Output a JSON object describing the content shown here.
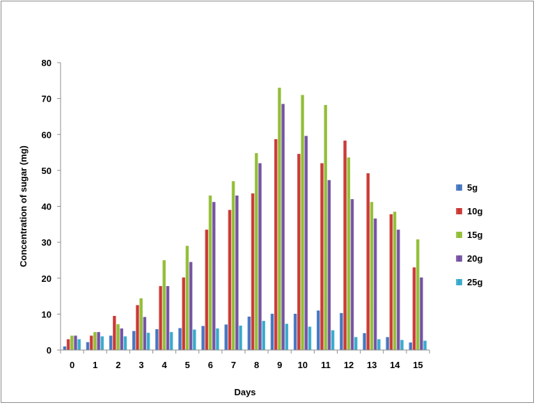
{
  "chart_data": {
    "type": "bar",
    "title": "",
    "xlabel": "Days",
    "ylabel": "Concentration of sugar (mg)",
    "ylim": [
      0,
      80
    ],
    "yticks": [
      0,
      10,
      20,
      30,
      40,
      50,
      60,
      70,
      80
    ],
    "categories": [
      "0",
      "1",
      "2",
      "3",
      "4",
      "5",
      "6",
      "7",
      "8",
      "9",
      "10",
      "11",
      "12",
      "13",
      "14",
      "15"
    ],
    "legend_position": "right",
    "grid": false,
    "series": [
      {
        "name": "5g",
        "color": "#3c6fbe",
        "values": [
          1.0,
          2.2,
          4.0,
          5.3,
          5.8,
          6.1,
          6.7,
          7.1,
          9.3,
          10.1,
          10.1,
          11.0,
          10.3,
          4.7,
          3.6,
          2.1
        ]
      },
      {
        "name": "10g",
        "color": "#c8302b",
        "values": [
          3.0,
          4.0,
          9.5,
          12.5,
          17.8,
          20.2,
          33.5,
          39.0,
          43.6,
          58.7,
          54.6,
          52.0,
          58.3,
          49.2,
          37.8,
          23.0
        ]
      },
      {
        "name": "15g",
        "color": "#8dbb2d",
        "values": [
          4.0,
          5.0,
          7.2,
          14.4,
          25.0,
          29.0,
          43.0,
          47.0,
          54.8,
          73.0,
          71.0,
          68.2,
          53.6,
          41.2,
          38.5,
          30.8
        ]
      },
      {
        "name": "20g",
        "color": "#6e4a9e",
        "values": [
          4.0,
          5.0,
          6.0,
          9.2,
          17.8,
          24.5,
          41.2,
          43.0,
          52.0,
          68.5,
          59.6,
          47.3,
          42.0,
          36.6,
          33.5,
          20.2
        ]
      },
      {
        "name": "25g",
        "color": "#2ea6c8",
        "values": [
          3.0,
          3.8,
          3.8,
          4.8,
          5.0,
          5.7,
          6.0,
          6.8,
          8.1,
          7.3,
          6.5,
          5.5,
          3.6,
          3.0,
          2.8,
          2.6
        ]
      }
    ]
  }
}
